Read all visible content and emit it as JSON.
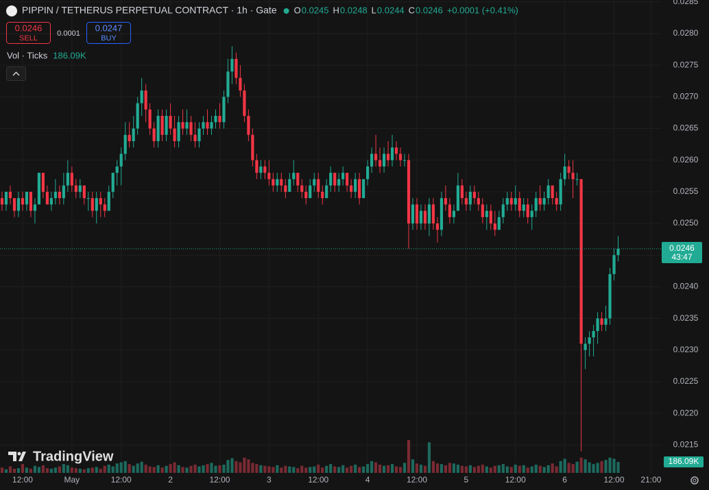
{
  "header": {
    "symbol": "PIPPIN / TETHERUS PERPETUAL CONTRACT · 1h · Gate",
    "ohlc": [
      {
        "key": "O",
        "value": "0.0245"
      },
      {
        "key": "H",
        "value": "0.0248"
      },
      {
        "key": "L",
        "value": "0.0244"
      },
      {
        "key": "C",
        "value": "0.0246"
      }
    ],
    "change": "+0.0001 (+0.41%)",
    "sell_price": "0.0246",
    "sell_label": "SELL",
    "spread": "0.0001",
    "buy_price": "0.0247",
    "buy_label": "BUY",
    "volume_indicator": "Vol · Ticks",
    "volume_value": "186.09K"
  },
  "chart_data": {
    "type": "candlestick",
    "up_color": "#22ab94",
    "down_color": "#f23645",
    "volume_up_color": "#1d6a5e",
    "volume_down_color": "#7a2a33",
    "grid": true,
    "candles": [
      [
        0.0254,
        0.0255,
        0.0252,
        0.0253
      ],
      [
        0.0253,
        0.0255,
        0.0252,
        0.0255
      ],
      [
        0.0255,
        0.0256,
        0.0253,
        0.0254
      ],
      [
        0.0254,
        0.0254,
        0.0251,
        0.0252
      ],
      [
        0.0252,
        0.0255,
        0.0251,
        0.0254
      ],
      [
        0.0254,
        0.0255,
        0.0252,
        0.0253
      ],
      [
        0.0253,
        0.0255,
        0.0252,
        0.0255
      ],
      [
        0.0255,
        0.0255,
        0.0251,
        0.0252
      ],
      [
        0.0252,
        0.0254,
        0.025,
        0.0253
      ],
      [
        0.0253,
        0.0258,
        0.0253,
        0.0258
      ],
      [
        0.0258,
        0.0258,
        0.0254,
        0.0255
      ],
      [
        0.0255,
        0.0256,
        0.0253,
        0.0253
      ],
      [
        0.0253,
        0.0255,
        0.0252,
        0.0254
      ],
      [
        0.0254,
        0.0257,
        0.0253,
        0.0255
      ],
      [
        0.0255,
        0.0256,
        0.0253,
        0.0254
      ],
      [
        0.0254,
        0.0258,
        0.0253,
        0.0256
      ],
      [
        0.0256,
        0.026,
        0.0255,
        0.0258
      ],
      [
        0.0258,
        0.0259,
        0.0255,
        0.0256
      ],
      [
        0.0256,
        0.0257,
        0.0254,
        0.0255
      ],
      [
        0.0255,
        0.0257,
        0.0254,
        0.0256
      ],
      [
        0.0256,
        0.0256,
        0.0253,
        0.0254
      ],
      [
        0.0254,
        0.0255,
        0.0252,
        0.0254
      ],
      [
        0.0254,
        0.0255,
        0.0251,
        0.0252
      ],
      [
        0.0252,
        0.0255,
        0.025,
        0.0254
      ],
      [
        0.0254,
        0.0255,
        0.0251,
        0.0253
      ],
      [
        0.0253,
        0.0254,
        0.0251,
        0.0252
      ],
      [
        0.0252,
        0.0256,
        0.0252,
        0.0255
      ],
      [
        0.0255,
        0.0258,
        0.0254,
        0.0258
      ],
      [
        0.0258,
        0.026,
        0.0256,
        0.0259
      ],
      [
        0.0259,
        0.0262,
        0.0256,
        0.0261
      ],
      [
        0.0261,
        0.0266,
        0.026,
        0.0264
      ],
      [
        0.0264,
        0.0266,
        0.0262,
        0.0263
      ],
      [
        0.0263,
        0.0267,
        0.0262,
        0.0265
      ],
      [
        0.0265,
        0.027,
        0.0264,
        0.0269
      ],
      [
        0.0269,
        0.0273,
        0.0267,
        0.0271
      ],
      [
        0.0271,
        0.0272,
        0.0266,
        0.0268
      ],
      [
        0.0268,
        0.0269,
        0.0264,
        0.0265
      ],
      [
        0.0265,
        0.0266,
        0.0262,
        0.0263
      ],
      [
        0.0263,
        0.0268,
        0.0262,
        0.0267
      ],
      [
        0.0267,
        0.0268,
        0.0263,
        0.0264
      ],
      [
        0.0264,
        0.0268,
        0.0263,
        0.0267
      ],
      [
        0.0267,
        0.0269,
        0.0264,
        0.0265
      ],
      [
        0.0265,
        0.0267,
        0.0262,
        0.0263
      ],
      [
        0.0263,
        0.0267,
        0.0262,
        0.0266
      ],
      [
        0.0266,
        0.0268,
        0.0264,
        0.0265
      ],
      [
        0.0265,
        0.0268,
        0.0264,
        0.0266
      ],
      [
        0.0266,
        0.0267,
        0.0263,
        0.0264
      ],
      [
        0.0264,
        0.0266,
        0.0262,
        0.0263
      ],
      [
        0.0263,
        0.0266,
        0.0262,
        0.0265
      ],
      [
        0.0265,
        0.0267,
        0.0264,
        0.0266
      ],
      [
        0.0266,
        0.0268,
        0.0264,
        0.0265
      ],
      [
        0.0265,
        0.0267,
        0.0264,
        0.0266
      ],
      [
        0.0266,
        0.0268,
        0.0265,
        0.0267
      ],
      [
        0.0267,
        0.0269,
        0.0265,
        0.0266
      ],
      [
        0.0266,
        0.0271,
        0.0265,
        0.027
      ],
      [
        0.027,
        0.0276,
        0.0269,
        0.0274
      ],
      [
        0.0274,
        0.0278,
        0.0272,
        0.0276
      ],
      [
        0.0276,
        0.0277,
        0.0272,
        0.0273
      ],
      [
        0.0273,
        0.0275,
        0.027,
        0.0271
      ],
      [
        0.0271,
        0.0272,
        0.0266,
        0.0267
      ],
      [
        0.0267,
        0.0268,
        0.0263,
        0.0264
      ],
      [
        0.0264,
        0.0265,
        0.0259,
        0.026
      ],
      [
        0.026,
        0.0261,
        0.0257,
        0.0258
      ],
      [
        0.0258,
        0.026,
        0.0257,
        0.0259
      ],
      [
        0.0259,
        0.026,
        0.0257,
        0.0258
      ],
      [
        0.0258,
        0.026,
        0.0256,
        0.0257
      ],
      [
        0.0257,
        0.0258,
        0.0255,
        0.0256
      ],
      [
        0.0256,
        0.0258,
        0.0255,
        0.0257
      ],
      [
        0.0257,
        0.0258,
        0.0255,
        0.0256
      ],
      [
        0.0256,
        0.0257,
        0.0254,
        0.0255
      ],
      [
        0.0255,
        0.0258,
        0.0255,
        0.0257
      ],
      [
        0.0257,
        0.026,
        0.0256,
        0.0258
      ],
      [
        0.0258,
        0.0258,
        0.0255,
        0.0256
      ],
      [
        0.0256,
        0.0257,
        0.0254,
        0.0255
      ],
      [
        0.0255,
        0.0256,
        0.0253,
        0.0254
      ],
      [
        0.0254,
        0.0257,
        0.0254,
        0.0256
      ],
      [
        0.0256,
        0.0258,
        0.0255,
        0.0257
      ],
      [
        0.0257,
        0.0258,
        0.0254,
        0.0255
      ],
      [
        0.0255,
        0.0256,
        0.0253,
        0.0254
      ],
      [
        0.0254,
        0.0257,
        0.0254,
        0.0256
      ],
      [
        0.0256,
        0.0259,
        0.0255,
        0.0258
      ],
      [
        0.0258,
        0.0258,
        0.0255,
        0.0256
      ],
      [
        0.0256,
        0.0258,
        0.0255,
        0.0257
      ],
      [
        0.0257,
        0.0259,
        0.0256,
        0.0258
      ],
      [
        0.0258,
        0.0258,
        0.0255,
        0.0256
      ],
      [
        0.0256,
        0.0257,
        0.0254,
        0.0255
      ],
      [
        0.0255,
        0.0258,
        0.0254,
        0.0257
      ],
      [
        0.0257,
        0.0258,
        0.0253,
        0.0254
      ],
      [
        0.0254,
        0.0257,
        0.0254,
        0.0257
      ],
      [
        0.0257,
        0.026,
        0.0256,
        0.0259
      ],
      [
        0.0259,
        0.0262,
        0.0258,
        0.0261
      ],
      [
        0.0261,
        0.0264,
        0.0259,
        0.026
      ],
      [
        0.026,
        0.0262,
        0.0258,
        0.0259
      ],
      [
        0.0259,
        0.0262,
        0.0258,
        0.0261
      ],
      [
        0.0261,
        0.0263,
        0.0259,
        0.026
      ],
      [
        0.026,
        0.0264,
        0.0259,
        0.0262
      ],
      [
        0.0262,
        0.0263,
        0.026,
        0.0261
      ],
      [
        0.0261,
        0.0262,
        0.0259,
        0.026
      ],
      [
        0.026,
        0.0261,
        0.0259,
        0.026
      ],
      [
        0.026,
        0.0261,
        0.0246,
        0.025
      ],
      [
        0.025,
        0.0254,
        0.0249,
        0.0253
      ],
      [
        0.0253,
        0.0254,
        0.0249,
        0.025
      ],
      [
        0.025,
        0.0253,
        0.0249,
        0.0252
      ],
      [
        0.0252,
        0.0253,
        0.0249,
        0.025
      ],
      [
        0.025,
        0.0254,
        0.0248,
        0.0253
      ],
      [
        0.0253,
        0.0254,
        0.0249,
        0.025
      ],
      [
        0.025,
        0.0251,
        0.0247,
        0.0249
      ],
      [
        0.0249,
        0.0255,
        0.0248,
        0.0254
      ],
      [
        0.0254,
        0.0256,
        0.0252,
        0.0253
      ],
      [
        0.0253,
        0.0254,
        0.025,
        0.0251
      ],
      [
        0.0251,
        0.0253,
        0.025,
        0.0252
      ],
      [
        0.0252,
        0.0258,
        0.0252,
        0.0256
      ],
      [
        0.0256,
        0.0257,
        0.0253,
        0.0254
      ],
      [
        0.0254,
        0.0255,
        0.0252,
        0.0253
      ],
      [
        0.0253,
        0.0256,
        0.0252,
        0.0255
      ],
      [
        0.0255,
        0.0256,
        0.0253,
        0.0254
      ],
      [
        0.0254,
        0.0255,
        0.0252,
        0.0253
      ],
      [
        0.0253,
        0.0254,
        0.025,
        0.0251
      ],
      [
        0.0251,
        0.0253,
        0.0249,
        0.0252
      ],
      [
        0.0252,
        0.0253,
        0.0249,
        0.025
      ],
      [
        0.025,
        0.0252,
        0.0248,
        0.0249
      ],
      [
        0.0249,
        0.0252,
        0.0249,
        0.0251
      ],
      [
        0.0251,
        0.0254,
        0.025,
        0.0253
      ],
      [
        0.0253,
        0.0255,
        0.0252,
        0.0254
      ],
      [
        0.0254,
        0.0255,
        0.0252,
        0.0253
      ],
      [
        0.0253,
        0.0256,
        0.0252,
        0.0254
      ],
      [
        0.0254,
        0.0255,
        0.0251,
        0.0252
      ],
      [
        0.0252,
        0.0254,
        0.0251,
        0.0253
      ],
      [
        0.0253,
        0.0254,
        0.025,
        0.0251
      ],
      [
        0.0251,
        0.0253,
        0.0249,
        0.0252
      ],
      [
        0.0252,
        0.0255,
        0.0251,
        0.0254
      ],
      [
        0.0254,
        0.0256,
        0.0252,
        0.0253
      ],
      [
        0.0253,
        0.0255,
        0.0252,
        0.0254
      ],
      [
        0.0254,
        0.0257,
        0.0253,
        0.0256
      ],
      [
        0.0256,
        0.0256,
        0.0253,
        0.0254
      ],
      [
        0.0254,
        0.0255,
        0.0252,
        0.0253
      ],
      [
        0.0253,
        0.0258,
        0.0252,
        0.0257
      ],
      [
        0.0257,
        0.0261,
        0.0256,
        0.0259
      ],
      [
        0.0259,
        0.026,
        0.0257,
        0.0258
      ],
      [
        0.0258,
        0.026,
        0.0254,
        0.0257
      ],
      [
        0.0257,
        0.0258,
        0.0256,
        0.0257
      ],
      [
        0.0257,
        0.0257,
        0.0214,
        0.0231
      ],
      [
        0.023,
        0.0232,
        0.0227,
        0.0231
      ],
      [
        0.0231,
        0.0233,
        0.0229,
        0.0232
      ],
      [
        0.0232,
        0.0234,
        0.0229,
        0.0233
      ],
      [
        0.0233,
        0.0236,
        0.0231,
        0.0235
      ],
      [
        0.0235,
        0.0236,
        0.0233,
        0.0234
      ],
      [
        0.0234,
        0.0237,
        0.0233,
        0.0235
      ],
      [
        0.0235,
        0.0243,
        0.0234,
        0.0242
      ],
      [
        0.0242,
        0.0246,
        0.0241,
        0.0245
      ],
      [
        0.0245,
        0.0248,
        0.0244,
        0.0246
      ]
    ],
    "volumes": [
      90000,
      60000,
      110000,
      70000,
      80000,
      150000,
      90000,
      70000,
      120000,
      100000,
      130000,
      80000,
      70000,
      90000,
      110000,
      150000,
      130000,
      90000,
      80000,
      70000,
      60000,
      80000,
      90000,
      100000,
      70000,
      120000,
      140000,
      110000,
      160000,
      180000,
      200000,
      150000,
      120000,
      160000,
      190000,
      140000,
      110000,
      100000,
      130000,
      90000,
      120000,
      150000,
      180000,
      130000,
      100000,
      90000,
      120000,
      140000,
      110000,
      130000,
      150000,
      170000,
      120000,
      130000,
      140000,
      220000,
      250000,
      200000,
      180000,
      260000,
      230000,
      170000,
      150000,
      130000,
      120000,
      110000,
      100000,
      130000,
      90000,
      120000,
      110000,
      100000,
      80000,
      120000,
      90000,
      100000,
      110000,
      140000,
      90000,
      120000,
      150000,
      110000,
      100000,
      130000,
      90000,
      120000,
      140000,
      100000,
      110000,
      150000,
      200000,
      180000,
      140000,
      120000,
      130000,
      150000,
      110000,
      100000,
      170000,
      560000,
      230000,
      160000,
      140000,
      120000,
      520000,
      200000,
      160000,
      150000,
      130000,
      170000,
      160000,
      140000,
      120000,
      110000,
      130000,
      100000,
      120000,
      140000,
      110000,
      90000,
      120000,
      130000,
      150000,
      110000,
      100000,
      140000,
      120000,
      130000,
      90000,
      110000,
      140000,
      120000,
      100000,
      130000,
      160000,
      110000,
      200000,
      240000,
      170000,
      150000,
      190000,
      260000,
      230000,
      180000,
      150000,
      170000,
      200000,
      220000,
      260000,
      240000,
      186090
    ],
    "volume_last_label": "186.09K",
    "last_price_label": "0.0246",
    "countdown": "43:47",
    "xlim": [
      -0.5,
      160.6
    ],
    "xticks": [
      {
        "value": 5,
        "label": "12:00"
      },
      {
        "value": 17,
        "label": "May"
      },
      {
        "value": 29,
        "label": "12:00"
      },
      {
        "value": 41,
        "label": "2"
      },
      {
        "value": 53,
        "label": "12:00"
      },
      {
        "value": 65,
        "label": "3"
      },
      {
        "value": 77,
        "label": "12:00"
      },
      {
        "value": 89,
        "label": "4"
      },
      {
        "value": 101,
        "label": "12:00"
      },
      {
        "value": 113,
        "label": "5"
      },
      {
        "value": 125,
        "label": "12:00"
      },
      {
        "value": 137,
        "label": "6"
      },
      {
        "value": 149,
        "label": "12:00"
      },
      {
        "value": 158,
        "label": "21:00"
      }
    ],
    "ylim": [
      0.02106,
      0.02853
    ],
    "yticks": [
      0.0215,
      {
        "value": 0.022,
        "label": "0.0220"
      },
      0.0225,
      {
        "value": 0.023,
        "label": "0.0230"
      },
      0.0235,
      {
        "value": 0.024,
        "label": "0.0240"
      },
      0.0245,
      {
        "value": 0.025,
        "label": "0.0250"
      },
      0.0255,
      {
        "value": 0.026,
        "label": "0.0260"
      },
      0.0265,
      {
        "value": 0.027,
        "label": "0.0270"
      },
      0.0275,
      {
        "value": 0.028,
        "label": "0.0280"
      },
      0.0285
    ],
    "watermark": "TradingView"
  }
}
